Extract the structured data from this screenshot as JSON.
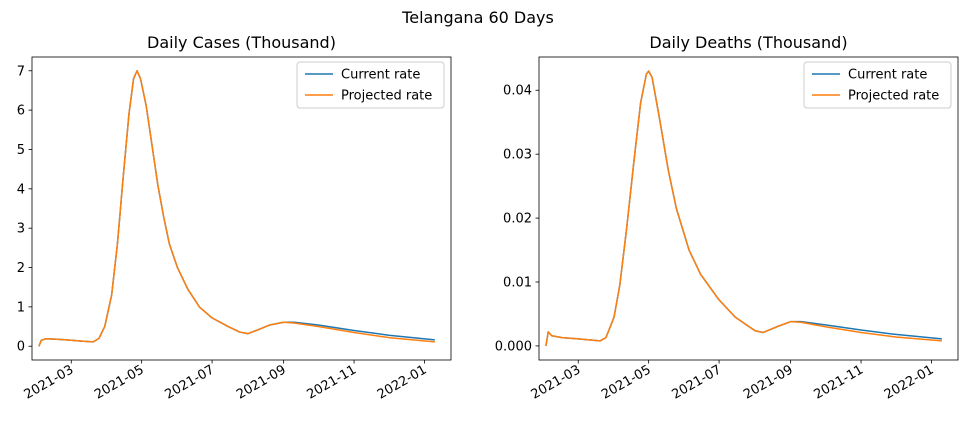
{
  "figure": {
    "suptitle": "Telangana 60 Days"
  },
  "chart_data": [
    {
      "type": "line",
      "title": "Daily Cases (Thousand)",
      "xlabel": "",
      "ylabel": "",
      "xlim": [
        "2021-01-26",
        "2022-01-24"
      ],
      "ylim": [
        -0.35,
        7.35
      ],
      "x_ticks": [
        "2021-03",
        "2021-05",
        "2021-07",
        "2021-09",
        "2021-11",
        "2022-01"
      ],
      "y_ticks": [
        0,
        1,
        2,
        3,
        4,
        5,
        6,
        7
      ],
      "y_tick_labels": [
        "0",
        "1",
        "2",
        "3",
        "4",
        "5",
        "6",
        "7"
      ],
      "grid": false,
      "legend": "top-right",
      "series": [
        {
          "name": "Current rate",
          "color": "#1f77b4",
          "points": [
            [
              "2021-02-01",
              0.0
            ],
            [
              "2021-02-03",
              0.15
            ],
            [
              "2021-02-07",
              0.19
            ],
            [
              "2021-02-15",
              0.18
            ],
            [
              "2021-02-25",
              0.16
            ],
            [
              "2021-03-10",
              0.13
            ],
            [
              "2021-03-20",
              0.11
            ],
            [
              "2021-03-25",
              0.2
            ],
            [
              "2021-03-30",
              0.5
            ],
            [
              "2021-04-05",
              1.3
            ],
            [
              "2021-04-10",
              2.6
            ],
            [
              "2021-04-15",
              4.3
            ],
            [
              "2021-04-20",
              5.9
            ],
            [
              "2021-04-24",
              6.8
            ],
            [
              "2021-04-27",
              7.0
            ],
            [
              "2021-04-30",
              6.8
            ],
            [
              "2021-05-05",
              6.1
            ],
            [
              "2021-05-10",
              5.1
            ],
            [
              "2021-05-15",
              4.1
            ],
            [
              "2021-05-20",
              3.3
            ],
            [
              "2021-05-25",
              2.6
            ],
            [
              "2021-06-01",
              2.0
            ],
            [
              "2021-06-10",
              1.45
            ],
            [
              "2021-06-20",
              1.0
            ],
            [
              "2021-07-01",
              0.72
            ],
            [
              "2021-07-15",
              0.5
            ],
            [
              "2021-07-25",
              0.36
            ],
            [
              "2021-08-01",
              0.32
            ],
            [
              "2021-08-10",
              0.42
            ],
            [
              "2021-08-20",
              0.54
            ],
            [
              "2021-09-01",
              0.61
            ],
            [
              "2021-09-10",
              0.61
            ],
            [
              "2021-10-01",
              0.54
            ],
            [
              "2021-11-01",
              0.4
            ],
            [
              "2021-12-01",
              0.28
            ],
            [
              "2022-01-10",
              0.16
            ]
          ]
        },
        {
          "name": "Projected rate",
          "color": "#ff7f0e",
          "points": [
            [
              "2021-02-01",
              0.0
            ],
            [
              "2021-02-03",
              0.15
            ],
            [
              "2021-02-07",
              0.19
            ],
            [
              "2021-02-15",
              0.18
            ],
            [
              "2021-02-25",
              0.16
            ],
            [
              "2021-03-10",
              0.13
            ],
            [
              "2021-03-20",
              0.11
            ],
            [
              "2021-03-25",
              0.2
            ],
            [
              "2021-03-30",
              0.5
            ],
            [
              "2021-04-05",
              1.3
            ],
            [
              "2021-04-10",
              2.6
            ],
            [
              "2021-04-15",
              4.3
            ],
            [
              "2021-04-20",
              5.9
            ],
            [
              "2021-04-24",
              6.8
            ],
            [
              "2021-04-27",
              7.0
            ],
            [
              "2021-04-30",
              6.8
            ],
            [
              "2021-05-05",
              6.1
            ],
            [
              "2021-05-10",
              5.1
            ],
            [
              "2021-05-15",
              4.1
            ],
            [
              "2021-05-20",
              3.3
            ],
            [
              "2021-05-25",
              2.6
            ],
            [
              "2021-06-01",
              2.0
            ],
            [
              "2021-06-10",
              1.45
            ],
            [
              "2021-06-20",
              1.0
            ],
            [
              "2021-07-01",
              0.72
            ],
            [
              "2021-07-15",
              0.5
            ],
            [
              "2021-07-25",
              0.36
            ],
            [
              "2021-08-01",
              0.32
            ],
            [
              "2021-08-10",
              0.42
            ],
            [
              "2021-08-20",
              0.54
            ],
            [
              "2021-09-01",
              0.61
            ],
            [
              "2021-09-10",
              0.59
            ],
            [
              "2021-10-01",
              0.5
            ],
            [
              "2021-11-01",
              0.35
            ],
            [
              "2021-12-01",
              0.22
            ],
            [
              "2022-01-10",
              0.11
            ]
          ]
        }
      ]
    },
    {
      "type": "line",
      "title": "Daily Deaths (Thousand)",
      "xlabel": "",
      "ylabel": "",
      "xlim": [
        "2021-01-26",
        "2022-01-24"
      ],
      "ylim": [
        -0.0022,
        0.0452
      ],
      "x_ticks": [
        "2021-03",
        "2021-05",
        "2021-07",
        "2021-09",
        "2021-11",
        "2022-01"
      ],
      "y_ticks": [
        0,
        0.01,
        0.02,
        0.03,
        0.04
      ],
      "y_tick_labels": [
        "0.000",
        "0.01",
        "0.02",
        "0.03",
        "0.04"
      ],
      "grid": false,
      "legend": "top-right",
      "series": [
        {
          "name": "Current rate",
          "color": "#1f77b4",
          "points": [
            [
              "2021-02-01",
              0.0
            ],
            [
              "2021-02-03",
              0.0022
            ],
            [
              "2021-02-06",
              0.0016
            ],
            [
              "2021-02-15",
              0.0013
            ],
            [
              "2021-03-01",
              0.0011
            ],
            [
              "2021-03-20",
              0.0008
            ],
            [
              "2021-03-25",
              0.0013
            ],
            [
              "2021-04-01",
              0.0045
            ],
            [
              "2021-04-06",
              0.0095
            ],
            [
              "2021-04-12",
              0.0185
            ],
            [
              "2021-04-18",
              0.0285
            ],
            [
              "2021-04-24",
              0.038
            ],
            [
              "2021-04-29",
              0.0425
            ],
            [
              "2021-05-01",
              0.043
            ],
            [
              "2021-05-04",
              0.042
            ],
            [
              "2021-05-10",
              0.036
            ],
            [
              "2021-05-18",
              0.0275
            ],
            [
              "2021-05-25",
              0.0215
            ],
            [
              "2021-06-05",
              0.015
            ],
            [
              "2021-06-15",
              0.0112
            ],
            [
              "2021-07-01",
              0.0072
            ],
            [
              "2021-07-15",
              0.0045
            ],
            [
              "2021-08-01",
              0.0024
            ],
            [
              "2021-08-08",
              0.0021
            ],
            [
              "2021-08-20",
              0.003
            ],
            [
              "2021-09-01",
              0.0038
            ],
            [
              "2021-09-10",
              0.0038
            ],
            [
              "2021-10-01",
              0.0033
            ],
            [
              "2021-11-01",
              0.0025
            ],
            [
              "2021-12-01",
              0.0018
            ],
            [
              "2022-01-10",
              0.0011
            ]
          ]
        },
        {
          "name": "Projected rate",
          "color": "#ff7f0e",
          "points": [
            [
              "2021-02-01",
              0.0
            ],
            [
              "2021-02-03",
              0.0022
            ],
            [
              "2021-02-06",
              0.0016
            ],
            [
              "2021-02-15",
              0.0013
            ],
            [
              "2021-03-01",
              0.0011
            ],
            [
              "2021-03-20",
              0.0008
            ],
            [
              "2021-03-25",
              0.0013
            ],
            [
              "2021-04-01",
              0.0045
            ],
            [
              "2021-04-06",
              0.0095
            ],
            [
              "2021-04-12",
              0.0185
            ],
            [
              "2021-04-18",
              0.0285
            ],
            [
              "2021-04-24",
              0.038
            ],
            [
              "2021-04-29",
              0.0425
            ],
            [
              "2021-05-01",
              0.043
            ],
            [
              "2021-05-04",
              0.042
            ],
            [
              "2021-05-10",
              0.036
            ],
            [
              "2021-05-18",
              0.0275
            ],
            [
              "2021-05-25",
              0.0215
            ],
            [
              "2021-06-05",
              0.015
            ],
            [
              "2021-06-15",
              0.0112
            ],
            [
              "2021-07-01",
              0.0072
            ],
            [
              "2021-07-15",
              0.0045
            ],
            [
              "2021-08-01",
              0.0024
            ],
            [
              "2021-08-08",
              0.0021
            ],
            [
              "2021-08-20",
              0.003
            ],
            [
              "2021-09-01",
              0.0038
            ],
            [
              "2021-09-10",
              0.0037
            ],
            [
              "2021-10-01",
              0.003
            ],
            [
              "2021-11-01",
              0.0021
            ],
            [
              "2021-12-01",
              0.0014
            ],
            [
              "2022-01-10",
              0.0008
            ]
          ]
        }
      ]
    }
  ]
}
